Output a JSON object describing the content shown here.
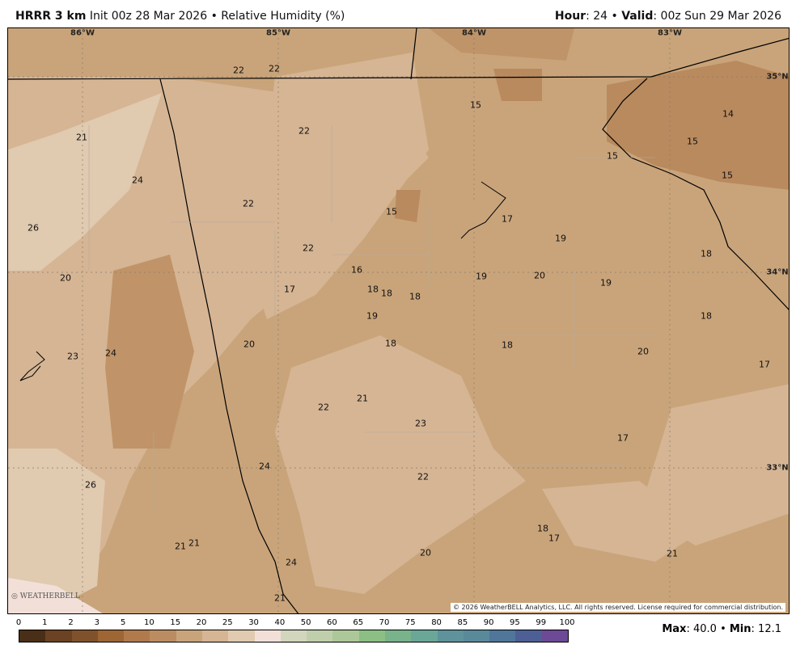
{
  "header": {
    "model": "HRRR 3 km",
    "init": "Init 00z 28 Mar 2026",
    "sep": "•",
    "field": "Relative Humidity (%)",
    "hour_label": "Hour",
    "hour": ": 24",
    "valid_label": "Valid",
    "valid": ": 00z Sun 29 Mar 2026"
  },
  "axes": {
    "lon": [
      "86°W",
      "85°W",
      "84°W",
      "83°W"
    ],
    "lat": [
      "35°N",
      "34°N",
      "33°N"
    ]
  },
  "station_values": [
    22,
    22,
    21,
    24,
    22,
    15,
    14,
    15,
    15,
    15,
    26,
    22,
    15,
    17,
    19,
    22,
    18,
    20,
    16,
    17,
    18,
    18,
    18,
    19,
    20,
    19,
    19,
    18,
    23,
    24,
    20,
    18,
    18,
    20,
    17,
    21,
    22,
    23,
    17,
    24,
    22,
    26,
    18,
    17,
    21,
    21,
    20,
    21,
    24,
    21
  ],
  "copyright": "© 2026 WeatherBELL Analytics, LLC. All rights reserved. License required for commercial distribution.",
  "logo_text": "WeatherBELL",
  "colorbar": {
    "ticks": [
      "0",
      "1",
      "2",
      "3",
      "5",
      "10",
      "15",
      "20",
      "25",
      "30",
      "40",
      "50",
      "60",
      "65",
      "70",
      "75",
      "80",
      "85",
      "90",
      "95",
      "99",
      "100"
    ],
    "colors": [
      "#4a2f18",
      "#6b4223",
      "#80522b",
      "#9e6535",
      "#b07a4c",
      "#bb8c62",
      "#c9a47a",
      "#d5b594",
      "#e0cab0",
      "#f2e0d8",
      "#d2d6bc",
      "#bfcfab",
      "#adc898",
      "#8bbf84",
      "#78b38b",
      "#6aa797",
      "#5e939c",
      "#598a9a",
      "#50769a",
      "#4d5f95",
      "#6c4a96"
    ]
  },
  "stats": {
    "max_label": "Max",
    "max": ": 40.0",
    "min_label": "Min",
    "min": ": 12.1"
  }
}
